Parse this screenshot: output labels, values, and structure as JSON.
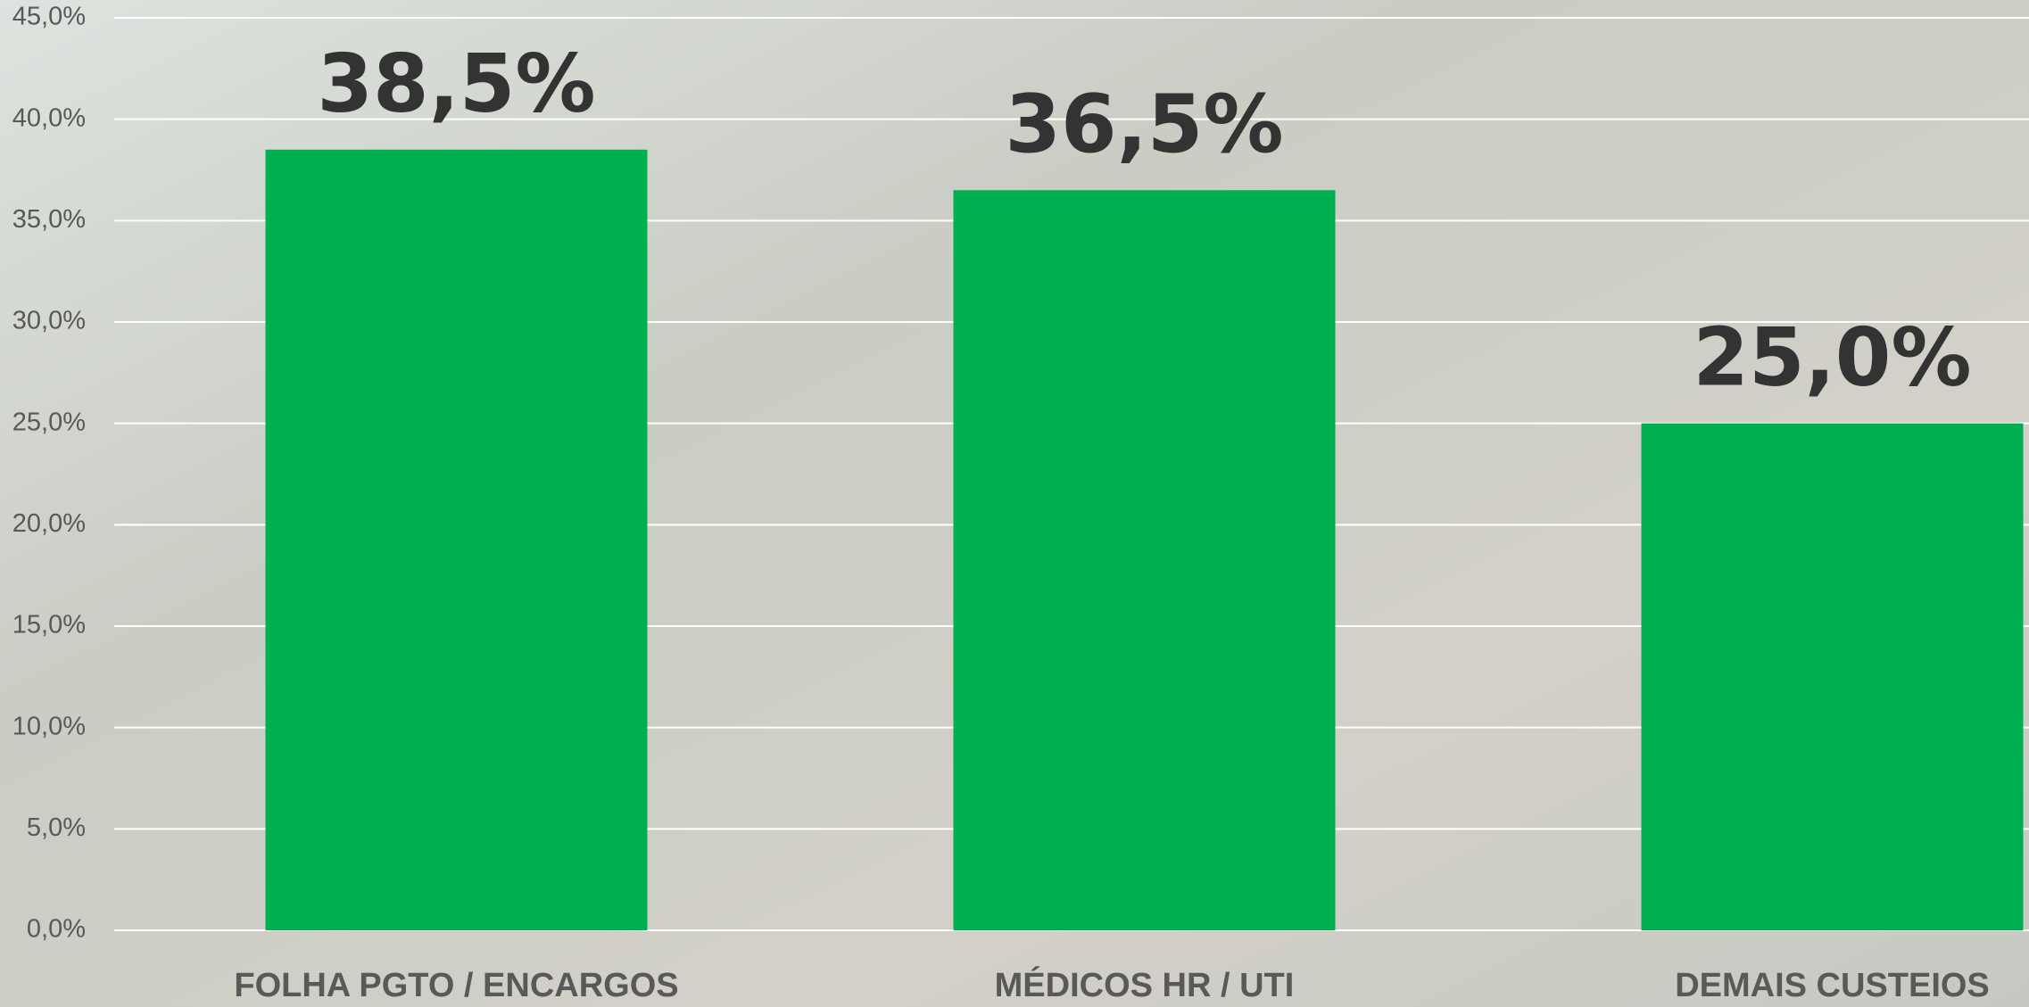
{
  "chart_data": {
    "type": "bar",
    "categories": [
      "FOLHA PGTO / ENCARGOS",
      "MÉDICOS HR / UTI",
      "DEMAIS CUSTEIOS"
    ],
    "values": [
      38.5,
      36.5,
      25.0
    ],
    "value_labels": [
      "38,5%",
      "36,5%",
      "25,0%"
    ],
    "color": "#00b050",
    "ylim": [
      0,
      45
    ],
    "yticks": [
      {
        "value": 0,
        "label": "0,0%"
      },
      {
        "value": 5,
        "label": "5,0%"
      },
      {
        "value": 10,
        "label": "10,0%"
      },
      {
        "value": 15,
        "label": "15,0%"
      },
      {
        "value": 20,
        "label": "20,0%"
      },
      {
        "value": 25,
        "label": "25,0%"
      },
      {
        "value": 30,
        "label": "30,0%"
      },
      {
        "value": 35,
        "label": "35,0%"
      },
      {
        "value": 40,
        "label": "40,0%"
      },
      {
        "value": 45,
        "label": "45,0%"
      }
    ],
    "grid": true
  }
}
